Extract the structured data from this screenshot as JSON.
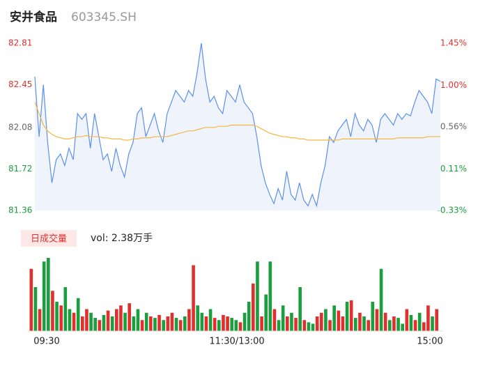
{
  "header": {
    "name": "安井食品",
    "code": "603345.SH"
  },
  "chart_data": {
    "type": "line",
    "ylim": [
      81.36,
      82.81
    ],
    "yticks": [
      81.36,
      81.72,
      82.08,
      82.45,
      82.81
    ],
    "y2lim": [
      -0.33,
      1.45
    ],
    "y2ticks": [
      {
        "value": -0.33,
        "label": "-0.33%"
      },
      {
        "value": 0.11,
        "label": "0.11%"
      },
      {
        "value": 0.56,
        "label": "0.56%"
      },
      {
        "value": 1.0,
        "label": "1.00%"
      },
      {
        "value": 1.45,
        "label": "1.45%"
      }
    ],
    "up_color": "#e0302e",
    "down_color": "#1a9e3f",
    "neutral_color": "#666666",
    "series": [
      {
        "name": "price",
        "color": "#5b8ff0",
        "values": [
          82.52,
          82.0,
          82.45,
          81.95,
          81.6,
          81.8,
          81.85,
          81.75,
          81.9,
          81.8,
          82.2,
          82.15,
          82.2,
          81.9,
          82.2,
          82.0,
          81.8,
          81.85,
          81.7,
          81.9,
          81.75,
          81.65,
          81.85,
          81.95,
          82.2,
          82.25,
          82.0,
          82.1,
          82.2,
          82.05,
          81.95,
          82.2,
          82.3,
          82.4,
          82.35,
          82.3,
          82.4,
          82.35,
          82.55,
          82.81,
          82.5,
          82.3,
          82.35,
          82.25,
          82.2,
          82.4,
          82.35,
          82.3,
          82.45,
          82.3,
          82.25,
          82.2,
          82.0,
          81.75,
          81.6,
          81.5,
          81.42,
          81.55,
          81.45,
          81.7,
          81.5,
          81.45,
          81.6,
          81.45,
          81.4,
          81.5,
          81.4,
          81.6,
          81.75,
          82.0,
          81.95,
          82.05,
          82.1,
          82.15,
          82.0,
          82.2,
          82.1,
          82.05,
          82.15,
          82.1,
          81.95,
          82.15,
          82.2,
          82.15,
          82.1,
          82.2,
          82.15,
          82.2,
          82.18,
          82.3,
          82.4,
          82.35,
          82.3,
          82.2,
          82.5,
          82.48
        ]
      },
      {
        "name": "average",
        "color": "#f5b73c",
        "values": [
          82.3,
          82.2,
          82.1,
          82.05,
          82.02,
          82.0,
          81.99,
          81.98,
          81.98,
          81.99,
          82.0,
          82.0,
          82.01,
          82.0,
          82.0,
          82.0,
          81.99,
          81.99,
          81.98,
          81.98,
          81.98,
          81.97,
          81.97,
          81.98,
          81.98,
          81.99,
          81.99,
          81.99,
          82.0,
          82.0,
          82.0,
          82.0,
          82.01,
          82.02,
          82.03,
          82.04,
          82.05,
          82.05,
          82.06,
          82.07,
          82.08,
          82.08,
          82.08,
          82.09,
          82.09,
          82.09,
          82.1,
          82.1,
          82.1,
          82.1,
          82.1,
          82.1,
          82.09,
          82.07,
          82.05,
          82.03,
          82.02,
          82.01,
          82.0,
          82.0,
          81.99,
          81.99,
          81.98,
          81.98,
          81.97,
          81.97,
          81.97,
          81.97,
          81.97,
          81.97,
          81.97,
          81.97,
          81.98,
          81.98,
          81.98,
          81.98,
          81.98,
          81.98,
          81.98,
          81.98,
          81.98,
          81.98,
          81.98,
          81.98,
          81.98,
          81.99,
          81.99,
          81.99,
          81.99,
          81.99,
          81.99,
          81.99,
          82.0,
          82.0,
          82.0,
          82.0
        ]
      }
    ],
    "volume": {
      "legend": "日成交量",
      "label": "vol: 2.38万手",
      "ylim": [
        0,
        100
      ],
      "values": [
        85,
        60,
        30,
        95,
        100,
        55,
        40,
        35,
        60,
        30,
        25,
        45,
        20,
        30,
        25,
        18,
        15,
        22,
        28,
        20,
        30,
        35,
        25,
        38,
        20,
        30,
        15,
        25,
        20,
        18,
        22,
        15,
        20,
        25,
        18,
        15,
        20,
        30,
        90,
        35,
        25,
        20,
        30,
        18,
        15,
        22,
        20,
        18,
        15,
        12,
        25,
        40,
        65,
        95,
        20,
        50,
        95,
        30,
        15,
        35,
        20,
        25,
        18,
        60,
        15,
        12,
        10,
        20,
        25,
        30,
        15,
        35,
        28,
        20,
        40,
        42,
        18,
        25,
        20,
        15,
        40,
        30,
        85,
        25,
        15,
        20,
        18,
        10,
        30,
        22,
        15,
        25,
        12,
        35,
        20,
        30
      ],
      "up": [
        1,
        0,
        1,
        0,
        0,
        1,
        0,
        1,
        0,
        0,
        1,
        0,
        1,
        1,
        0,
        0,
        1,
        0,
        1,
        0,
        1,
        1,
        0,
        1,
        0,
        0,
        1,
        0,
        1,
        0,
        1,
        0,
        1,
        1,
        0,
        1,
        0,
        1,
        1,
        0,
        0,
        1,
        0,
        1,
        0,
        1,
        1,
        0,
        0,
        1,
        0,
        0,
        1,
        0,
        1,
        0,
        0,
        1,
        0,
        0,
        1,
        0,
        1,
        0,
        1,
        0,
        0,
        1,
        1,
        0,
        1,
        0,
        1,
        1,
        0,
        1,
        0,
        1,
        0,
        1,
        0,
        1,
        0,
        1,
        0,
        1,
        0,
        0,
        1,
        0,
        1,
        0,
        1,
        1,
        0,
        1
      ]
    },
    "time_labels": [
      "09:30",
      "11:30/13:00",
      "15:00"
    ]
  }
}
